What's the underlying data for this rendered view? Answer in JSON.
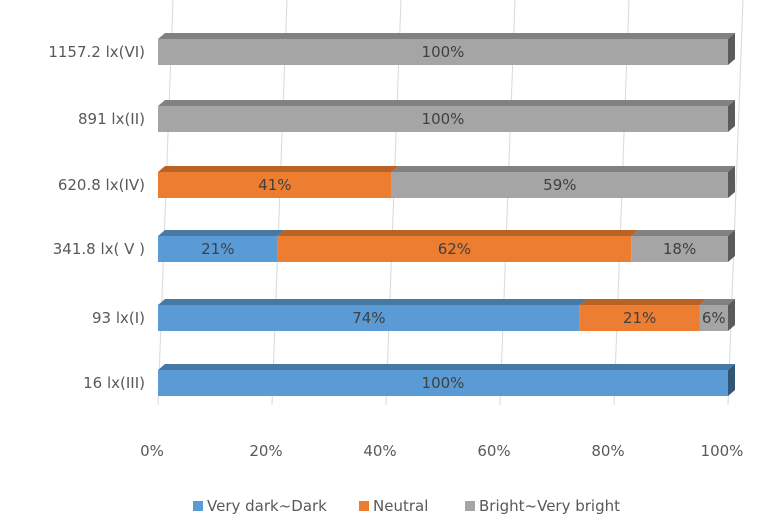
{
  "chart_data": {
    "type": "bar",
    "orientation": "horizontal",
    "stacked": "percent",
    "style": "3d",
    "title": "",
    "xlabel": "",
    "ylabel": "",
    "xlim": [
      0,
      100
    ],
    "x_ticks": [
      "0%",
      "20%",
      "40%",
      "60%",
      "80%",
      "100%"
    ],
    "categories": [
      "1157.2 lx(VI)",
      "891 lx(II)",
      "620.8 lx(IV)",
      "341.8 lx( V )",
      "93 lx(I)",
      "16 lx(III)"
    ],
    "series": [
      {
        "name": "Very dark~Dark",
        "color": "#5b9bd5",
        "values": [
          0,
          0,
          0,
          21,
          74,
          100
        ],
        "labels": [
          "",
          "",
          "",
          "21%",
          "74%",
          "100%"
        ]
      },
      {
        "name": "Neutral",
        "color": "#ed7d31",
        "values": [
          0,
          0,
          41,
          62,
          21,
          0
        ],
        "labels": [
          "",
          "",
          "41%",
          "62%",
          "21%",
          ""
        ]
      },
      {
        "name": "Bright~Very bright",
        "color": "#a5a5a5",
        "values": [
          100,
          100,
          59,
          18,
          6,
          0
        ],
        "labels": [
          "100%",
          "100%",
          "59%",
          "18%",
          "6%",
          ""
        ]
      }
    ],
    "grid": true,
    "legend_position": "bottom"
  }
}
